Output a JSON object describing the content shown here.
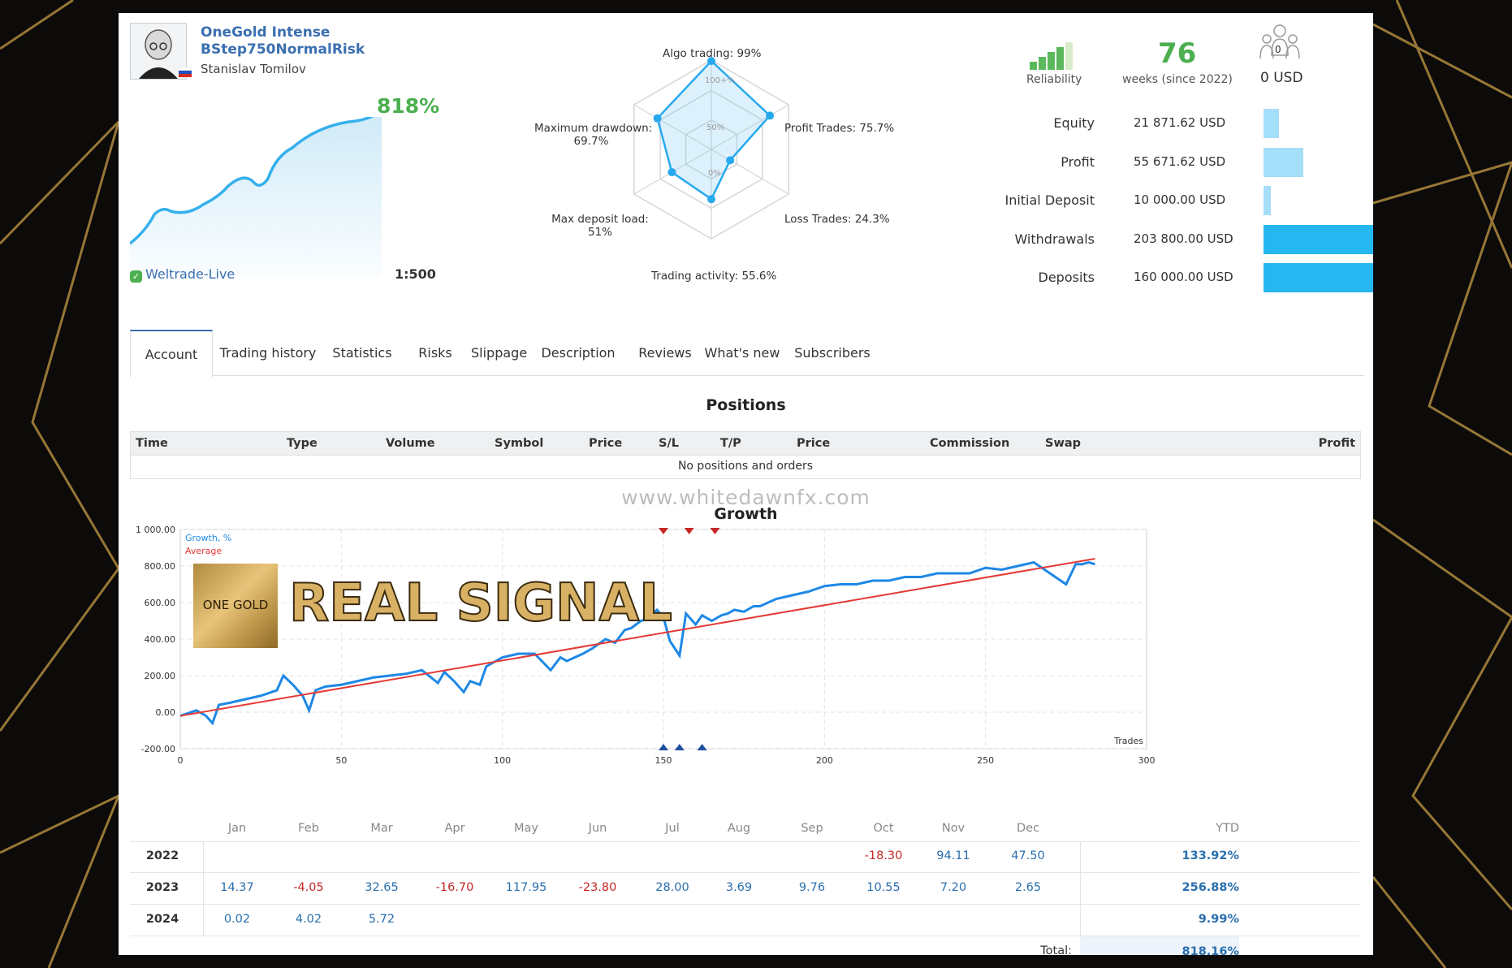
{
  "signal": {
    "name": "OneGold Intense",
    "name2": "BStep750NormalRisk",
    "author": "Stanislav Tomilov",
    "growth": "818%",
    "broker": "Weltrade-Live",
    "leverage": "1:500"
  },
  "radar": {
    "algo": "Algo trading: 99%",
    "profit_trades": "Profit Trades: 75.7%",
    "loss_trades": "Loss Trades: 24.3%",
    "activity": "Trading activity: 55.6%",
    "deposit_load": "Max deposit load:",
    "deposit_load_val": "51%",
    "drawdown": "Maximum drawdown:",
    "drawdown_val": "69.7%",
    "ring100": "100+%",
    "ring50": "50%",
    "ring0": "0%",
    "values": {
      "algo": 0.99,
      "profit": 0.757,
      "loss": 0.243,
      "activity": 0.556,
      "load": 0.51,
      "drawdown": 0.697
    }
  },
  "stats": {
    "reliability_label": "Reliability",
    "weeks": "76",
    "weeks_label": "weeks (since 2022)",
    "subscribers_count": "0",
    "subscribers_usd": "0 USD"
  },
  "balances": [
    {
      "label": "Equity",
      "value": "21 871.62 USD",
      "amount": 21871.62,
      "color": "#a5def8"
    },
    {
      "label": "Profit",
      "value": "55 671.62 USD",
      "amount": 55671.62,
      "color": "#a5def8"
    },
    {
      "label": "Initial Deposit",
      "value": "10 000.00 USD",
      "amount": 10000,
      "color": "#a5def8"
    },
    {
      "label": "Withdrawals",
      "value": "203 800.00 USD",
      "amount": 203800,
      "color": "#25b7f0"
    },
    {
      "label": "Deposits",
      "value": "160 000.00 USD",
      "amount": 160000,
      "color": "#25b7f0"
    }
  ],
  "tabs": [
    "Account",
    "Trading history",
    "Statistics",
    "Risks",
    "Slippage",
    "Description",
    "Reviews",
    "What's new",
    "Subscribers"
  ],
  "positions": {
    "title": "Positions",
    "headers": [
      "Time",
      "Type",
      "Volume",
      "Symbol",
      "Price",
      "S/L",
      "T/P",
      "Price",
      "Commission",
      "Swap",
      "Profit"
    ],
    "empty": "No positions and orders"
  },
  "watermark": "www.whitedawnfx.com",
  "overlay": {
    "logo": "ONE GOLD",
    "headline": "REAL SIGNAL"
  },
  "chart_data": {
    "type": "line",
    "title": "Growth",
    "xlabel": "Trades",
    "xlim": [
      0,
      300
    ],
    "ylim": [
      -200,
      1000
    ],
    "x_ticks": [
      "0",
      "50",
      "100",
      "150",
      "200",
      "250",
      "300"
    ],
    "y_ticks": [
      "-200.00",
      "0.00",
      "200.00",
      "400.00",
      "600.00",
      "800.00",
      "1 000.00"
    ],
    "series": [
      {
        "name": "Growth, %",
        "color": "#1e88e5",
        "x": [
          0,
          5,
          8,
          10,
          12,
          15,
          20,
          25,
          30,
          32,
          35,
          38,
          40,
          42,
          45,
          50,
          55,
          60,
          65,
          70,
          75,
          80,
          82,
          85,
          88,
          90,
          93,
          95,
          100,
          105,
          110,
          115,
          118,
          120,
          125,
          128,
          132,
          135,
          138,
          140,
          143,
          145,
          148,
          150,
          152,
          155,
          157,
          160,
          162,
          165,
          168,
          170,
          172,
          175,
          178,
          180,
          185,
          190,
          195,
          200,
          205,
          210,
          215,
          220,
          225,
          230,
          235,
          240,
          245,
          250,
          255,
          260,
          265,
          270,
          275,
          278,
          280,
          282,
          284
        ],
        "y": [
          -20,
          10,
          -20,
          -60,
          40,
          50,
          70,
          90,
          120,
          200,
          150,
          90,
          10,
          120,
          140,
          150,
          170,
          190,
          200,
          210,
          230,
          160,
          220,
          170,
          110,
          170,
          150,
          250,
          300,
          320,
          320,
          230,
          300,
          280,
          320,
          350,
          400,
          380,
          450,
          460,
          500,
          510,
          560,
          520,
          390,
          310,
          540,
          480,
          530,
          500,
          530,
          540,
          560,
          550,
          580,
          580,
          620,
          640,
          660,
          690,
          700,
          700,
          720,
          720,
          740,
          740,
          760,
          760,
          760,
          790,
          780,
          800,
          820,
          760,
          700,
          810,
          810,
          820,
          810
        ]
      },
      {
        "name": "Average",
        "color": "#e53935",
        "x": [
          0,
          284
        ],
        "y": [
          -20,
          840
        ]
      }
    ]
  },
  "monthly": {
    "months": [
      "Jan",
      "Feb",
      "Mar",
      "Apr",
      "May",
      "Jun",
      "Jul",
      "Aug",
      "Sep",
      "Oct",
      "Nov",
      "Dec"
    ],
    "ytd_label": "YTD",
    "rows": [
      {
        "year": "2022",
        "values": [
          "",
          "",
          "",
          "",
          "",
          "",
          "",
          "",
          "",
          "-18.30",
          "94.11",
          "47.50"
        ],
        "ytd": "133.92%"
      },
      {
        "year": "2023",
        "values": [
          "14.37",
          "-4.05",
          "32.65",
          "-16.70",
          "117.95",
          "-23.80",
          "28.00",
          "3.69",
          "9.76",
          "10.55",
          "7.20",
          "2.65"
        ],
        "ytd": "256.88%"
      },
      {
        "year": "2024",
        "values": [
          "0.02",
          "4.02",
          "5.72",
          "",
          "",
          "",
          "",
          "",
          "",
          "",
          "",
          ""
        ],
        "ytd": "9.99%"
      }
    ],
    "total_label": "Total:",
    "total": "818.16%"
  }
}
